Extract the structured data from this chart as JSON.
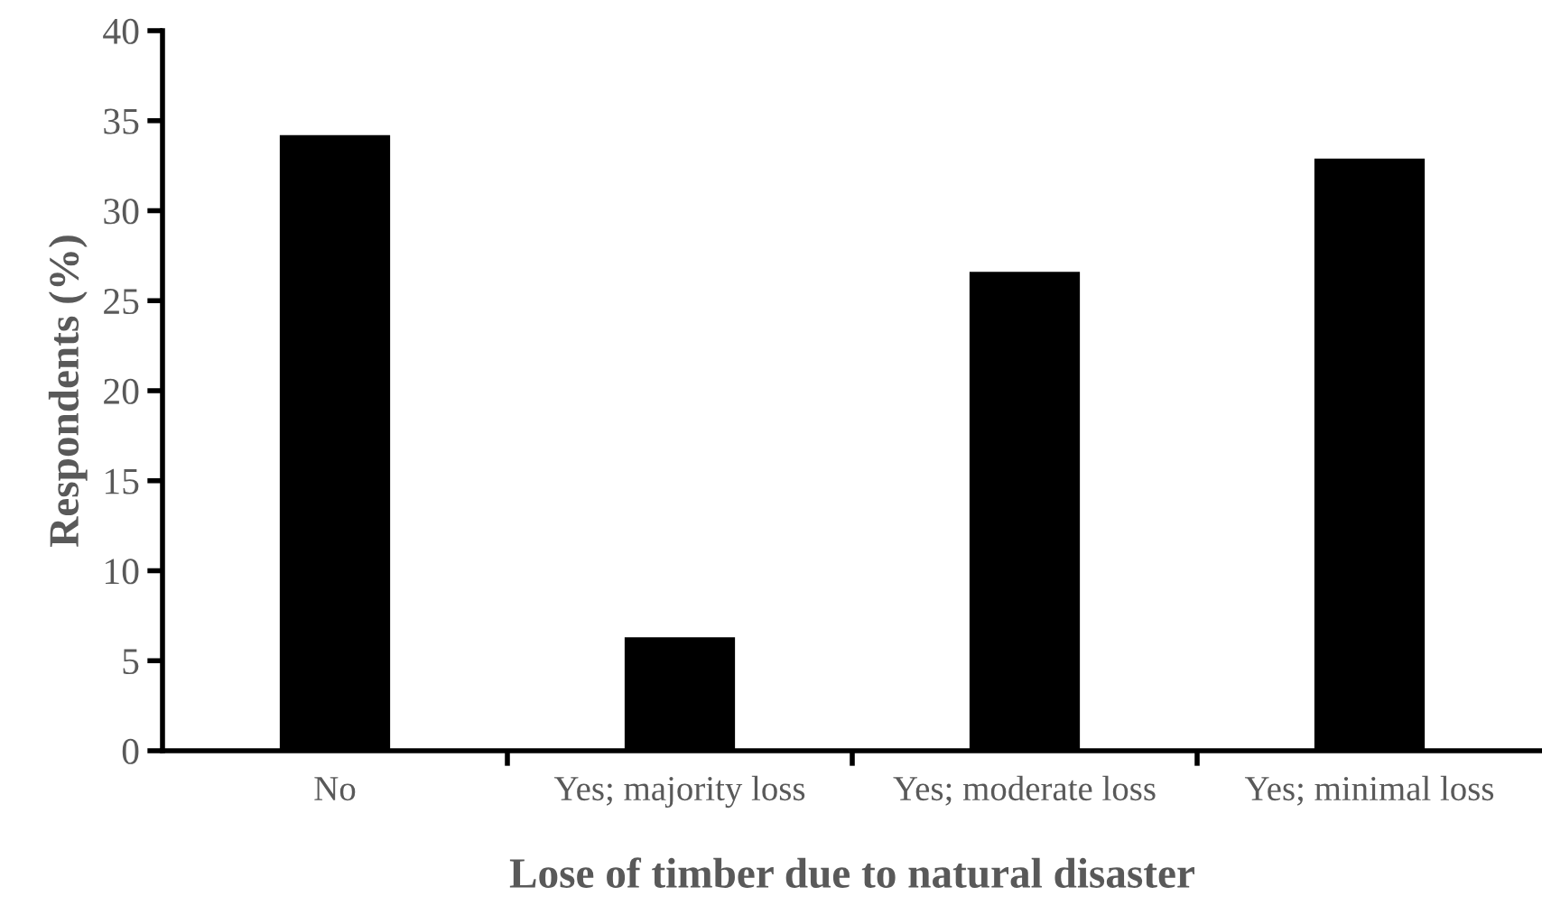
{
  "chart_data": {
    "type": "bar",
    "xlabel": "Lose of timber due to natural disaster",
    "ylabel": "Respondents (%)",
    "categories": [
      "No",
      "Yes; majority loss",
      "Yes; moderate loss",
      "Yes; minimal loss"
    ],
    "values": [
      34.2,
      6.3,
      26.6,
      32.9
    ],
    "color": "#000000",
    "ylim": [
      0,
      40
    ],
    "yticks": [
      0,
      5,
      10,
      15,
      20,
      25,
      30,
      35,
      40
    ],
    "grid": false,
    "legend": false
  }
}
